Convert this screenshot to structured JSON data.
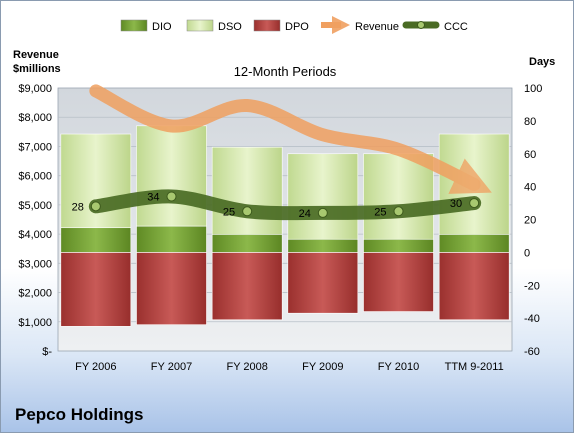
{
  "company": "Pepco Holdings",
  "chart_data": {
    "type": "bar",
    "title": "12-Month Periods",
    "ylabel_left": "Revenue\n$millions",
    "ylabel_right": "Days",
    "categories": [
      "FY 2006",
      "FY 2007",
      "FY 2008",
      "FY 2009",
      "FY 2010",
      "TTM 9-2011"
    ],
    "left_axis": {
      "min": 0,
      "max": 9000,
      "step": 1000,
      "labels": [
        "$-",
        "$1,000",
        "$2,000",
        "$3,000",
        "$4,000",
        "$5,000",
        "$6,000",
        "$7,000",
        "$8,000",
        "$9,000"
      ]
    },
    "right_axis": {
      "min": -60,
      "max": 100,
      "step": 20
    },
    "series": [
      {
        "name": "DIO",
        "kind": "bar-days",
        "color": "#6f9a2e",
        "values": [
          15,
          16,
          11,
          8,
          8,
          11
        ]
      },
      {
        "name": "DSO",
        "kind": "bar-days",
        "color": "#d2e8a8",
        "values": [
          57,
          61,
          53,
          52,
          52,
          61
        ]
      },
      {
        "name": "DPO",
        "kind": "bar-days-negative",
        "color": "#b3403e",
        "values": [
          45,
          44,
          41,
          37,
          36,
          41
        ]
      },
      {
        "name": "Revenue",
        "kind": "line-left",
        "color": "#f0a060",
        "values": [
          8900,
          7700,
          8400,
          7400,
          6900,
          5700
        ]
      },
      {
        "name": "CCC",
        "kind": "line-right",
        "color": "#4a6b24",
        "values": [
          28,
          34,
          25,
          24,
          25,
          30
        ],
        "labels": [
          "28",
          "34",
          "25",
          "24",
          "25",
          "30"
        ]
      }
    ],
    "grid": true,
    "legend": "top"
  }
}
